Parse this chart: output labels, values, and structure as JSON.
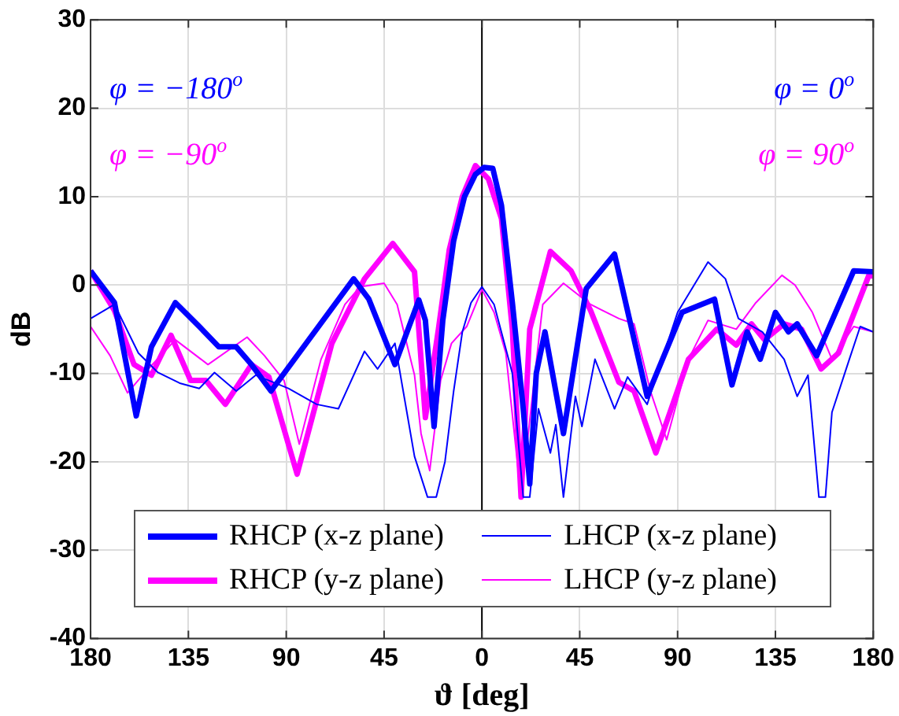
{
  "chart_data": {
    "type": "line",
    "xlabel": "ϑ [deg]",
    "ylabel": "dB",
    "xlim": [
      -180,
      180
    ],
    "ylim": [
      -40,
      30
    ],
    "xticks": [
      {
        "value": -180,
        "label": "180"
      },
      {
        "value": -135,
        "label": "135"
      },
      {
        "value": -90,
        "label": "90"
      },
      {
        "value": -45,
        "label": "45"
      },
      0,
      45,
      90,
      135,
      180
    ],
    "yticks": [
      -40,
      -30,
      -20,
      -10,
      0,
      10,
      20,
      30
    ],
    "grid": true,
    "legend": "bottom",
    "marker": "none",
    "line_style": "solid",
    "ref_lines": [
      {
        "axis": "x",
        "value": 0,
        "color": "#000000"
      }
    ],
    "annotations": [
      "φ = −180$^{o}$",
      "φ = −90$^{o}$",
      "φ = 0$^{o}$",
      "φ = 90$^{o}$"
    ],
    "series": [
      {
        "name": "RHCP (x-z plane)",
        "color": "#0000ff",
        "x": [
          -180,
          -169,
          -159,
          -152,
          -141,
          -130,
          -121,
          -113,
          -106,
          -97,
          -59,
          -52,
          -40,
          -29,
          -26,
          -22,
          -18,
          -13,
          -8,
          -3,
          1,
          5,
          9,
          14,
          19,
          22,
          25,
          29,
          37.5,
          48,
          61,
          76,
          92,
          107,
          115,
          122,
          128,
          135,
          141,
          145,
          154,
          171,
          180
        ],
        "values": [
          1.6,
          -2,
          -14.8,
          -7,
          -2,
          -4.7,
          -7,
          -7,
          -9,
          -12,
          0.7,
          -1.6,
          -9,
          -1.7,
          -4,
          -16,
          -4,
          5,
          10,
          12.5,
          13.3,
          13.2,
          9,
          -2,
          -14,
          -22.5,
          -10,
          -5.3,
          -16.8,
          -0.4,
          3.5,
          -12.6,
          -3.1,
          -1.6,
          -11.3,
          -5.3,
          -8.4,
          -3.1,
          -5.3,
          -4.4,
          -8,
          1.6,
          1.5
        ]
      },
      {
        "name": "LHCP (x-z plane)",
        "color": "#0000ff",
        "x": [
          -180,
          -169,
          -158,
          -149,
          -139,
          -130,
          -123,
          -113,
          -104,
          -89,
          -76,
          -66,
          -54,
          -48,
          -40,
          -31,
          -25,
          -21,
          -17,
          -13,
          -9,
          -5,
          0,
          5.6,
          14,
          19,
          22,
          26,
          31.5,
          34,
          37.5,
          43,
          46,
          52,
          61,
          67,
          76,
          90,
          104,
          112,
          118,
          129,
          139,
          145,
          150,
          155,
          158,
          161,
          169,
          174,
          180
        ],
        "values": [
          -3.8,
          -2.2,
          -7.7,
          -9.9,
          -11.1,
          -11.7,
          -9.9,
          -12,
          -10.2,
          -11.7,
          -13.5,
          -14,
          -7.5,
          -9.5,
          -6.6,
          -19.4,
          -24,
          -24,
          -20,
          -12,
          -5.3,
          -2,
          -0.2,
          -2.2,
          -10,
          -24,
          -24,
          -14,
          -19,
          -15.8,
          -24,
          -12.6,
          -16,
          -8.4,
          -14,
          -10.4,
          -13.5,
          -3.1,
          2.6,
          0.7,
          -3.8,
          -5.3,
          -8.4,
          -12.6,
          -10.2,
          -24,
          -24,
          -14.4,
          -8.4,
          -4.7,
          -5.3
        ]
      },
      {
        "name": "RHCP (y-z plane)",
        "color": "#ff00ff",
        "x": [
          -180,
          -169,
          -160,
          -152,
          -143,
          -134,
          -127,
          -118,
          -106,
          -98,
          -85,
          -69,
          -54,
          -41,
          -31,
          -26,
          -20,
          -15,
          -9,
          -3,
          3,
          9,
          14,
          18,
          22,
          31.5,
          41,
          50,
          63,
          70,
          80,
          95,
          108,
          117,
          124,
          130,
          139,
          147,
          156,
          164,
          178,
          180
        ],
        "values": [
          1.6,
          -2.9,
          -9,
          -10.2,
          -5.7,
          -10.8,
          -10.8,
          -13.5,
          -9,
          -10.4,
          -21.4,
          -6.6,
          0.7,
          4.7,
          1.5,
          -15,
          -5,
          4,
          10,
          13.5,
          12,
          7.5,
          -5,
          -24,
          -5,
          3.8,
          1.6,
          -2.9,
          -11,
          -12,
          -19,
          -8.4,
          -5,
          -6.8,
          -4.4,
          -6.2,
          -4.4,
          -5,
          -9.5,
          -7.7,
          1.1,
          1
        ]
      },
      {
        "name": "LHCP (y-z plane)",
        "color": "#ff00ff",
        "x": [
          -180,
          -171,
          -163,
          -155,
          -141,
          -126,
          -108,
          -100,
          -91,
          -84,
          -74,
          -63,
          -56,
          -45,
          -39,
          -31,
          -28,
          -24,
          -19,
          -14,
          -7,
          0,
          5.6,
          11,
          18,
          28,
          37.5,
          50,
          63,
          70,
          77.5,
          85,
          95,
          104,
          117,
          126,
          138,
          144,
          152,
          161,
          171,
          180
        ],
        "values": [
          -4.7,
          -8,
          -12.2,
          -9.9,
          -6.2,
          -9,
          -5.9,
          -8,
          -10.8,
          -18,
          -8.4,
          -2.2,
          -0.2,
          0.2,
          -2.2,
          -10.2,
          -16.8,
          -21,
          -10.8,
          -6.6,
          -4.7,
          -0.5,
          -3.1,
          -7.7,
          -24,
          -2.2,
          0.2,
          -2.2,
          -3.8,
          -4.4,
          -12,
          -17.5,
          -8.4,
          -4,
          -5,
          -2,
          1.1,
          0,
          -3.1,
          -8.4,
          -4.7,
          -5.3
        ]
      }
    ]
  }
}
